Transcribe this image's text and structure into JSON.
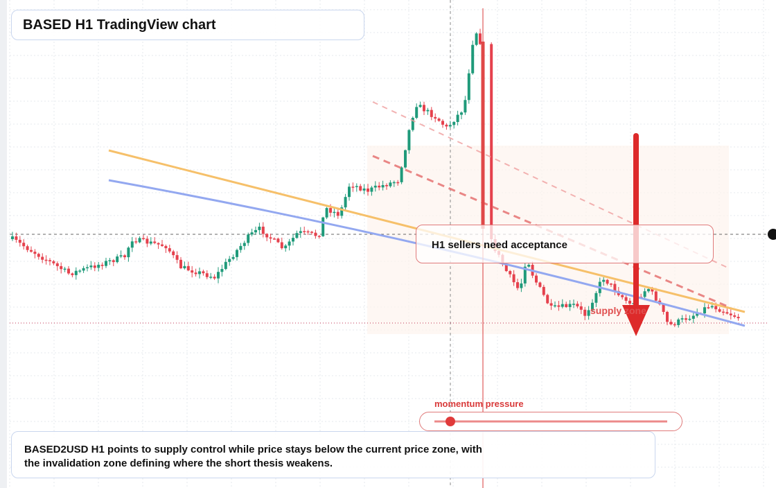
{
  "header": {
    "title": "BASED H1 TradingView chart"
  },
  "annotations": {
    "callout": "H1 sellers need acceptance",
    "zone_label": "supply zone",
    "gauge_label": "momentum pressure"
  },
  "footer": {
    "text": "BASED2USD H1 points to supply control while price stays below the current price zone, with the invalidation zone defining where the short thesis weakens."
  }
}
